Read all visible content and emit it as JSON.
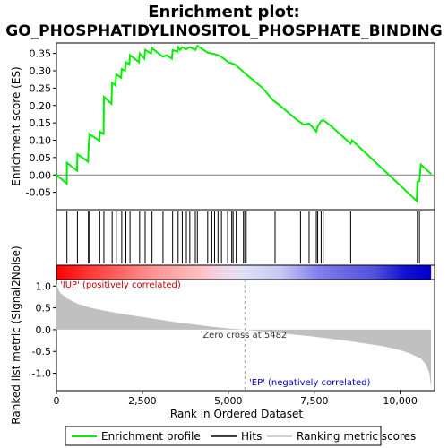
{
  "chart_data": {
    "type": "line",
    "title_line1": "Enrichment plot:",
    "title_line2": "GO_PHOSPHATIDYLINOSITOL_PHOSPHATE_BINDING",
    "top_panel": {
      "ylabel": "Enrichment score (ES)",
      "ylim": [
        -0.1,
        0.38
      ],
      "yticks": [
        -0.05,
        0.0,
        0.05,
        0.1,
        0.15,
        0.2,
        0.25,
        0.3,
        0.35
      ],
      "ytick_labels": [
        "-0.05",
        "0.00",
        "0.05",
        "0.10",
        "0.15",
        "0.20",
        "0.25",
        "0.30",
        "0.35"
      ],
      "series_name": "Enrichment profile",
      "color": "#00ee00",
      "es_curve": [
        [
          0,
          0.0
        ],
        [
          300,
          -0.025
        ],
        [
          305,
          0.035
        ],
        [
          600,
          0.012
        ],
        [
          610,
          0.06
        ],
        [
          920,
          0.038
        ],
        [
          930,
          0.07
        ],
        [
          960,
          0.118
        ],
        [
          1250,
          0.098
        ],
        [
          1260,
          0.125
        ],
        [
          1370,
          0.118
        ],
        [
          1380,
          0.225
        ],
        [
          1600,
          0.205
        ],
        [
          1620,
          0.265
        ],
        [
          1720,
          0.258
        ],
        [
          1740,
          0.29
        ],
        [
          1880,
          0.28
        ],
        [
          1900,
          0.305
        ],
        [
          2000,
          0.3
        ],
        [
          2020,
          0.325
        ],
        [
          2120,
          0.318
        ],
        [
          2140,
          0.345
        ],
        [
          2400,
          0.325
        ],
        [
          2420,
          0.35
        ],
        [
          2560,
          0.335
        ],
        [
          2580,
          0.36
        ],
        [
          2750,
          0.35
        ],
        [
          2780,
          0.365
        ],
        [
          3100,
          0.34
        ],
        [
          3200,
          0.345
        ],
        [
          3360,
          0.335
        ],
        [
          3380,
          0.36
        ],
        [
          3520,
          0.355
        ],
        [
          3540,
          0.368
        ],
        [
          3600,
          0.36
        ],
        [
          3660,
          0.368
        ],
        [
          3780,
          0.362
        ],
        [
          3880,
          0.368
        ],
        [
          4040,
          0.36
        ],
        [
          4100,
          0.372
        ],
        [
          4400,
          0.352
        ],
        [
          4600,
          0.348
        ],
        [
          4700,
          0.345
        ],
        [
          4800,
          0.34
        ],
        [
          5000,
          0.325
        ],
        [
          5200,
          0.318
        ],
        [
          5482,
          0.293
        ],
        [
          6000,
          0.25
        ],
        [
          6300,
          0.215
        ],
        [
          6500,
          0.2
        ],
        [
          7000,
          0.158
        ],
        [
          7200,
          0.145
        ],
        [
          7350,
          0.148
        ],
        [
          7560,
          0.125
        ],
        [
          7600,
          0.14
        ],
        [
          7700,
          0.155
        ],
        [
          7760,
          0.158
        ],
        [
          8000,
          0.14
        ],
        [
          8560,
          0.09
        ],
        [
          8600,
          0.1
        ],
        [
          10480,
          -0.075
        ],
        [
          10500,
          -0.02
        ],
        [
          10560,
          -0.018
        ],
        [
          10600,
          0.03
        ],
        [
          10900,
          0.003
        ]
      ]
    },
    "hits": [
      305,
      610,
      930,
      960,
      1260,
      1380,
      1620,
      1740,
      1900,
      2020,
      2140,
      2420,
      2580,
      2780,
      3100,
      3380,
      3540,
      3660,
      3780,
      3880,
      4040,
      4100,
      4400,
      4520,
      4600,
      4700,
      4800,
      4980,
      5100,
      5140,
      5230,
      5440,
      5480,
      5520,
      6360,
      7100,
      7350,
      7560,
      7600,
      7700,
      7760,
      8560,
      10500,
      10560
    ],
    "heatmap_bar": {
      "positive_color": "#ff0000",
      "negative_color": "#0000ff"
    },
    "bottom_panel": {
      "ylabel": "Ranked list metric (Signal2Noise)",
      "ylim": [
        -1.4,
        1.15
      ],
      "yticks": [
        -1.0,
        -0.5,
        0.0,
        0.5,
        1.0
      ],
      "ytick_labels": [
        "-1.0",
        "-0.5",
        "0.0",
        "0.5",
        "1.0"
      ],
      "metric_curve": [
        [
          0,
          1.05
        ],
        [
          100,
          0.85
        ],
        [
          300,
          0.72
        ],
        [
          600,
          0.6
        ],
        [
          1000,
          0.5
        ],
        [
          1500,
          0.42
        ],
        [
          2000,
          0.35
        ],
        [
          2500,
          0.29
        ],
        [
          3000,
          0.23
        ],
        [
          3500,
          0.17
        ],
        [
          4000,
          0.12
        ],
        [
          4500,
          0.07
        ],
        [
          5000,
          0.03
        ],
        [
          5482,
          0.0
        ],
        [
          6000,
          -0.04
        ],
        [
          6500,
          -0.08
        ],
        [
          7000,
          -0.12
        ],
        [
          7500,
          -0.16
        ],
        [
          8000,
          -0.21
        ],
        [
          8500,
          -0.26
        ],
        [
          9000,
          -0.32
        ],
        [
          9500,
          -0.38
        ],
        [
          10000,
          -0.47
        ],
        [
          10300,
          -0.55
        ],
        [
          10600,
          -0.66
        ],
        [
          10750,
          -0.8
        ],
        [
          10850,
          -1.0
        ],
        [
          10900,
          -1.35
        ]
      ],
      "zero_cross_label": "Zero cross at 5482",
      "zero_cross": 5482,
      "pos_label": "'IUP' (positively correlated)",
      "neg_label": "'EP' (negatively correlated)"
    },
    "xlabel": "Rank in Ordered Dataset",
    "xlim": [
      0,
      11000
    ],
    "xticks": [
      0,
      2500,
      5000,
      7500,
      10000
    ],
    "xtick_labels": [
      "0",
      "2,500",
      "5,000",
      "7,500",
      "10,000"
    ],
    "n_genes": 10900,
    "legend": {
      "items": [
        {
          "label": "Enrichment profile",
          "color": "#00ee00",
          "kind": "line"
        },
        {
          "label": "Hits",
          "color": "#000000",
          "kind": "line"
        },
        {
          "label": "Ranking metric scores",
          "color": "#c0c0c0",
          "kind": "line"
        }
      ]
    }
  }
}
